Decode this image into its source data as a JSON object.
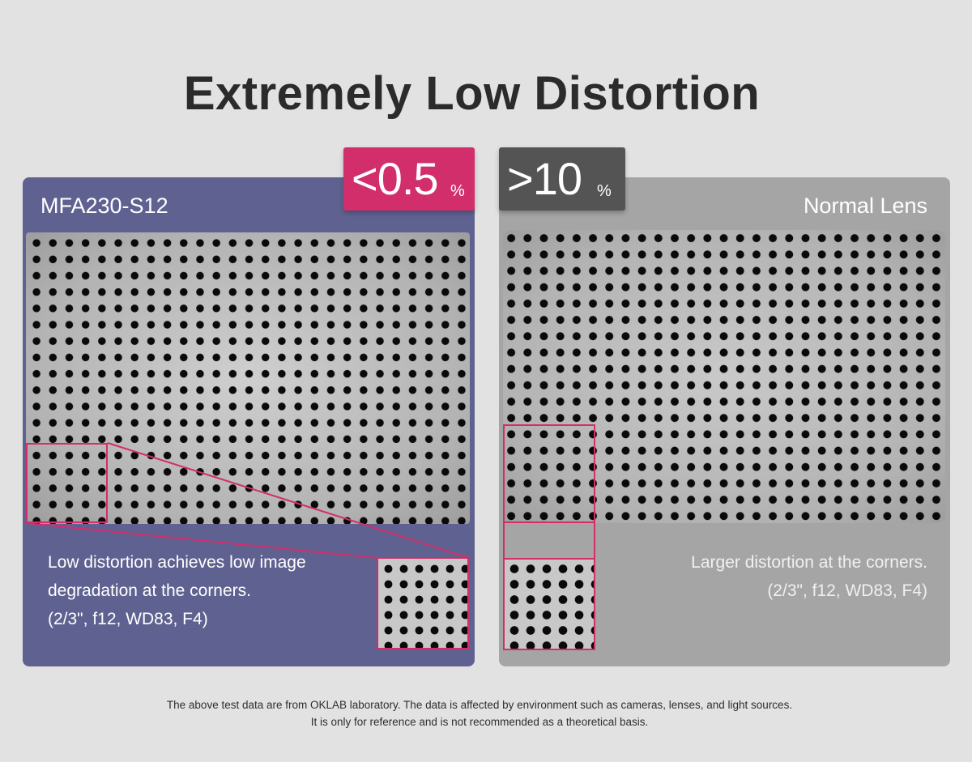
{
  "title": "Extremely Low Distortion",
  "left_panel": {
    "badge_value": "<0.5",
    "badge_unit": "%",
    "lens_name": "MFA230-S12",
    "caption_lines": [
      "Low distortion achieves low image",
      "degradation at the corners.",
      "(2/3\", f12, WD83, F4)"
    ]
  },
  "right_panel": {
    "badge_value": ">10",
    "badge_unit": "%",
    "lens_name": "Normal Lens",
    "caption_lines": [
      "Larger distortion at the corners.",
      "(2/3\", f12, WD83, F4)"
    ]
  },
  "footnote": {
    "line1": "The above test data are from OKLAB laboratory. The data is affected by environment such as cameras, lenses, and light sources.",
    "line2": "It is only for reference and is not recommended as a theoretical basis."
  },
  "colors": {
    "background": "#e2e2e2",
    "left_panel": "#5f6290",
    "right_panel": "#a5a5a5",
    "accent_pink": "#d22e6b",
    "badge_dark": "#545454"
  }
}
